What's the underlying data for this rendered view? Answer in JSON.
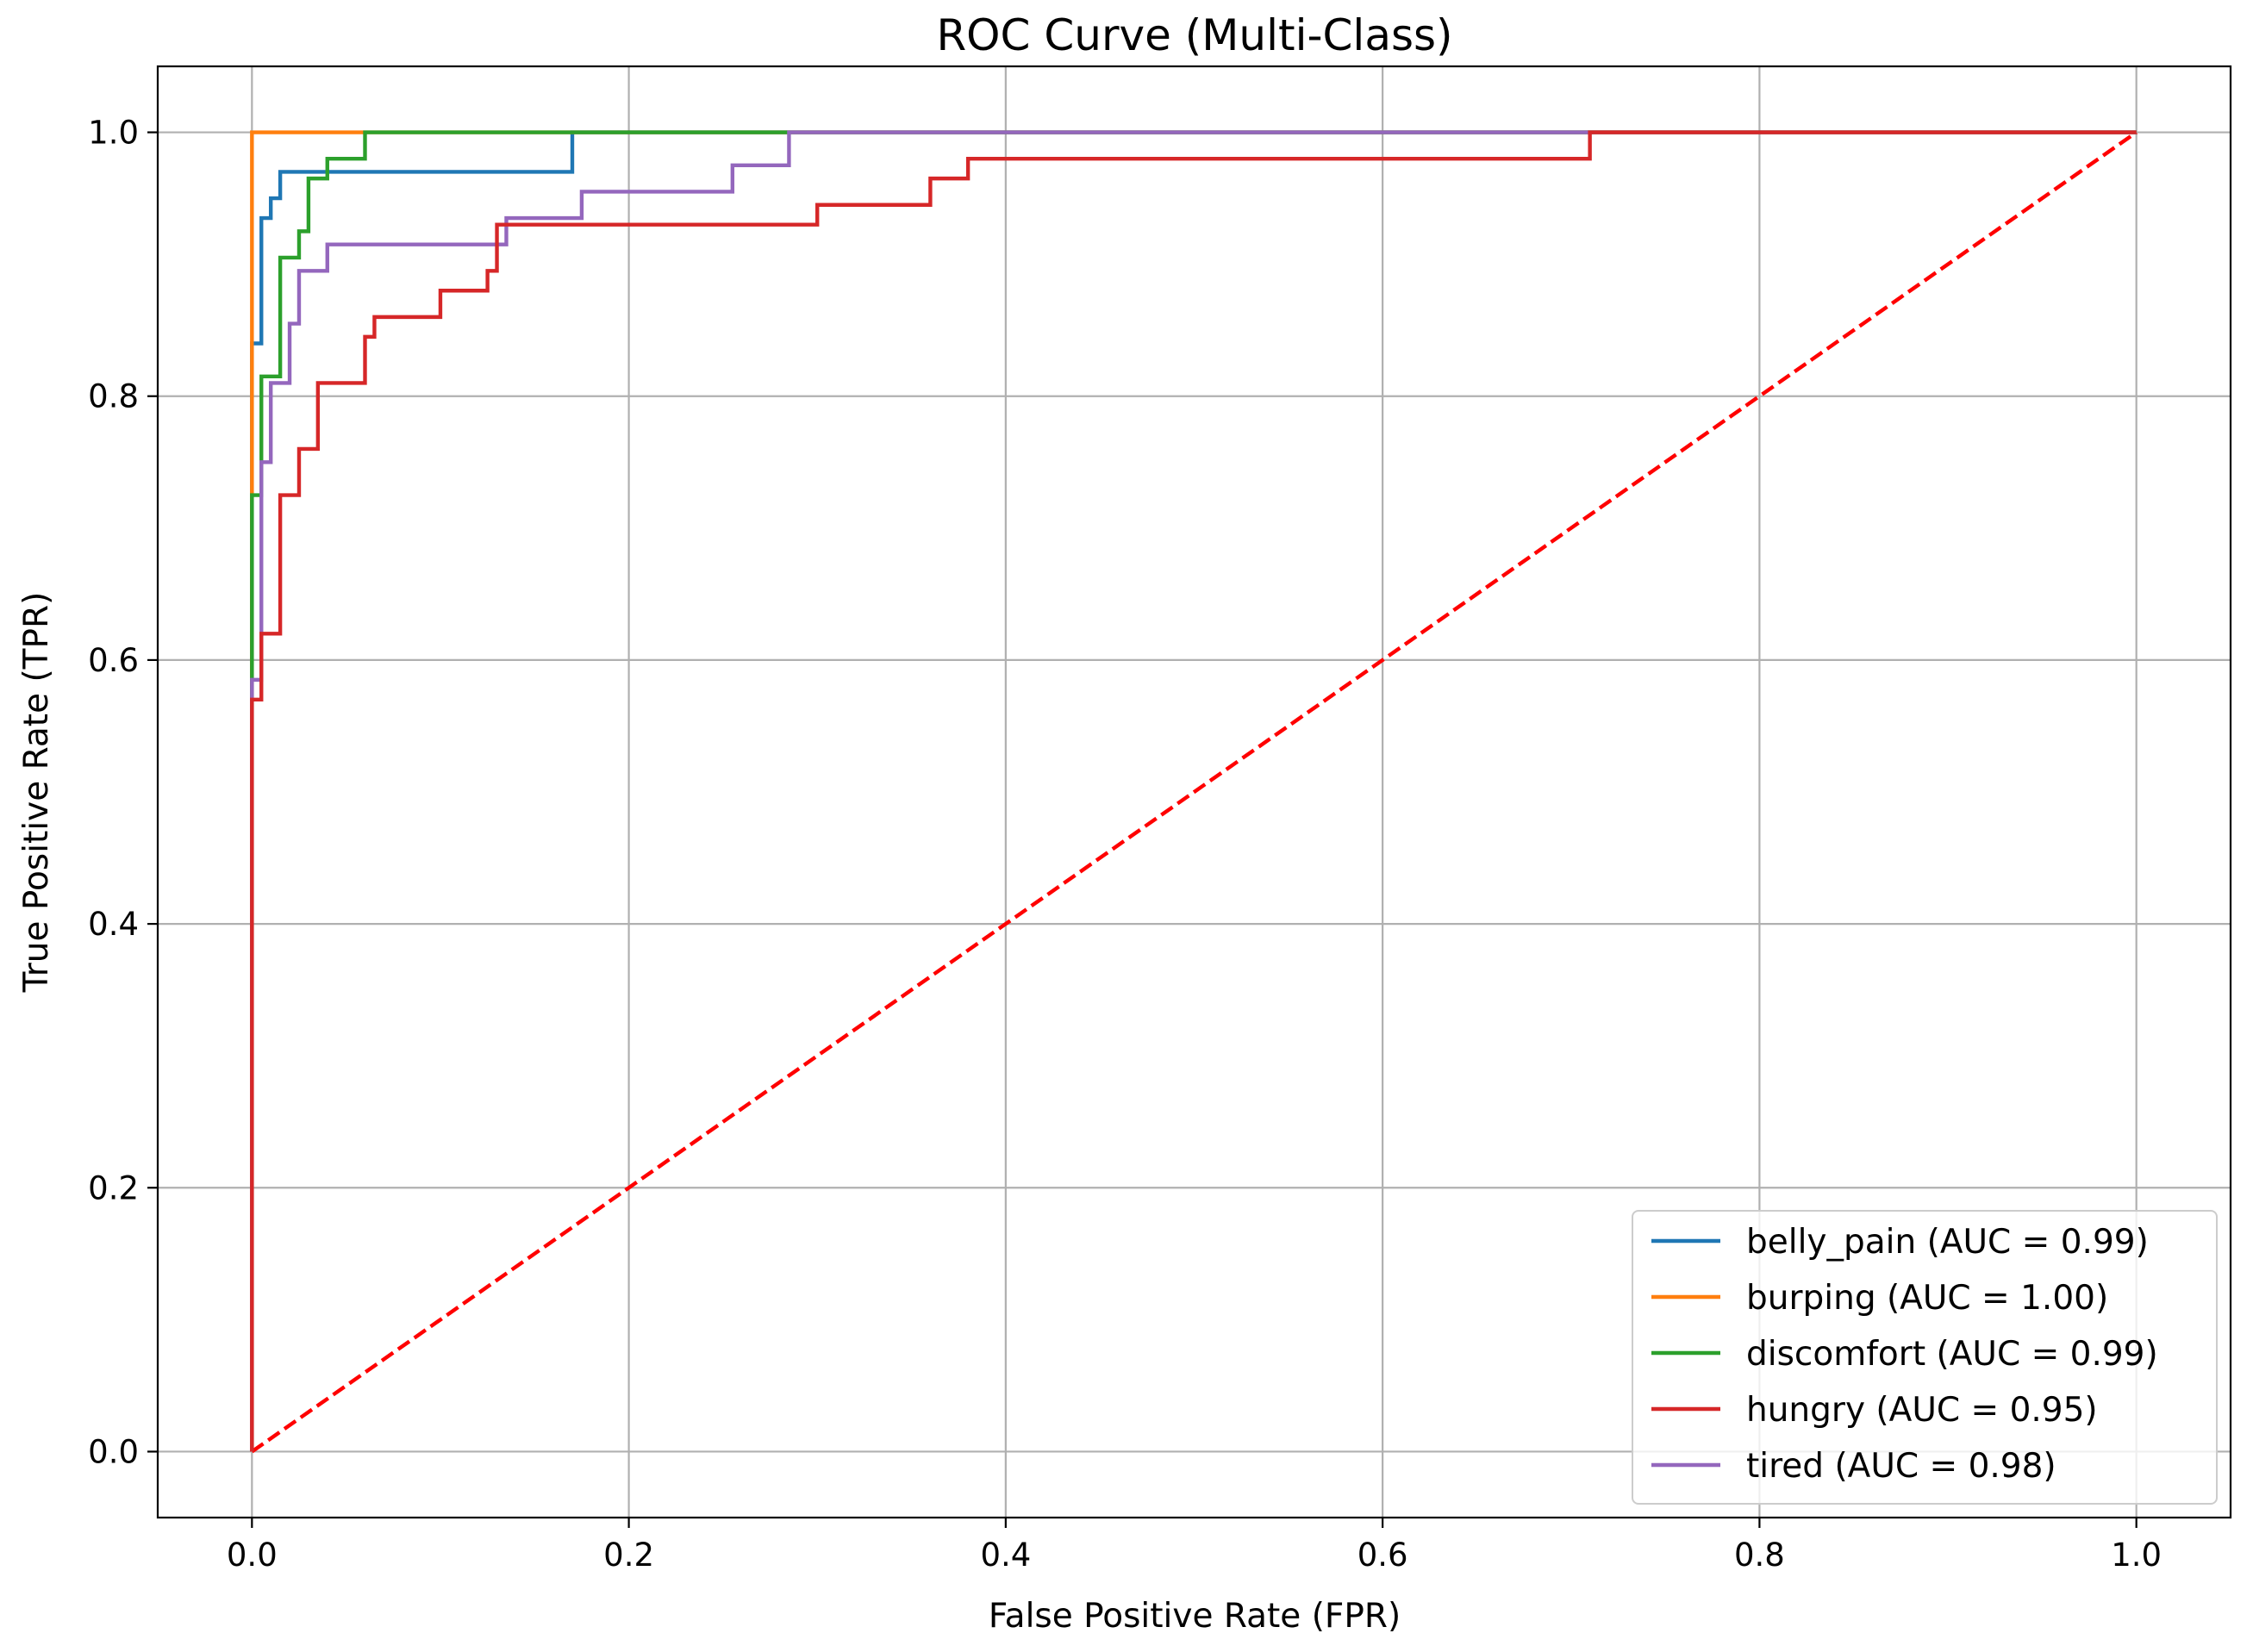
{
  "chart_data": {
    "type": "line",
    "title": "ROC Curve (Multi-Class)",
    "xlabel": "False Positive Rate (FPR)",
    "ylabel": "True Positive Rate (TPR)",
    "xlim": [
      -0.05,
      1.05
    ],
    "ylim": [
      -0.05,
      1.05
    ],
    "xticks": [
      0.0,
      0.2,
      0.4,
      0.6,
      0.8,
      1.0
    ],
    "yticks": [
      0.0,
      0.2,
      0.4,
      0.6,
      0.8,
      1.0
    ],
    "xtick_labels": [
      "0.0",
      "0.2",
      "0.4",
      "0.6",
      "0.8",
      "1.0"
    ],
    "ytick_labels": [
      "0.0",
      "0.2",
      "0.4",
      "0.6",
      "0.8",
      "1.0"
    ],
    "grid": true,
    "legend_position": "bottom-right",
    "series": [
      {
        "name": "belly_pain (AUC = 0.99)",
        "color": "#1f77b4",
        "x": [
          0.0,
          0.0,
          0.005,
          0.005,
          0.01,
          0.01,
          0.015,
          0.015,
          0.17,
          0.17,
          1.0
        ],
        "y": [
          0.0,
          0.84,
          0.84,
          0.935,
          0.935,
          0.95,
          0.95,
          0.97,
          0.97,
          1.0,
          1.0
        ]
      },
      {
        "name": "burping (AUC = 1.00)",
        "color": "#ff7f0e",
        "x": [
          0.0,
          0.0,
          1.0
        ],
        "y": [
          0.0,
          1.0,
          1.0
        ]
      },
      {
        "name": "discomfort (AUC = 0.99)",
        "color": "#2ca02c",
        "x": [
          0.0,
          0.0,
          0.005,
          0.005,
          0.01,
          0.01,
          0.015,
          0.015,
          0.025,
          0.025,
          0.03,
          0.03,
          0.04,
          0.04,
          0.06,
          0.06,
          1.0
        ],
        "y": [
          0.0,
          0.725,
          0.725,
          0.815,
          0.815,
          0.815,
          0.815,
          0.905,
          0.905,
          0.925,
          0.925,
          0.965,
          0.965,
          0.98,
          0.98,
          1.0,
          1.0
        ]
      },
      {
        "name": "hungry (AUC = 0.95)",
        "color": "#d62728",
        "x": [
          0.0,
          0.0,
          0.005,
          0.005,
          0.01,
          0.01,
          0.015,
          0.015,
          0.025,
          0.025,
          0.03,
          0.03,
          0.035,
          0.035,
          0.06,
          0.06,
          0.065,
          0.065,
          0.1,
          0.1,
          0.125,
          0.125,
          0.13,
          0.13,
          0.3,
          0.3,
          0.36,
          0.36,
          0.38,
          0.38,
          0.71,
          0.71,
          1.0
        ],
        "y": [
          0.0,
          0.57,
          0.57,
          0.62,
          0.62,
          0.62,
          0.62,
          0.725,
          0.725,
          0.76,
          0.76,
          0.76,
          0.76,
          0.81,
          0.81,
          0.845,
          0.845,
          0.86,
          0.86,
          0.88,
          0.88,
          0.895,
          0.895,
          0.93,
          0.93,
          0.945,
          0.945,
          0.965,
          0.965,
          0.98,
          0.98,
          1.0,
          1.0
        ]
      },
      {
        "name": "tired (AUC = 0.98)",
        "color": "#9467bd",
        "x": [
          0.0,
          0.0,
          0.005,
          0.005,
          0.01,
          0.01,
          0.015,
          0.015,
          0.02,
          0.02,
          0.025,
          0.025,
          0.03,
          0.03,
          0.04,
          0.04,
          0.135,
          0.135,
          0.175,
          0.175,
          0.255,
          0.255,
          0.285,
          0.285,
          1.0
        ],
        "y": [
          0.0,
          0.585,
          0.585,
          0.75,
          0.75,
          0.81,
          0.81,
          0.81,
          0.81,
          0.855,
          0.855,
          0.895,
          0.895,
          0.895,
          0.895,
          0.915,
          0.915,
          0.935,
          0.935,
          0.955,
          0.955,
          0.975,
          0.975,
          1.0,
          1.0
        ]
      }
    ],
    "diagonal": {
      "color": "#ff0000",
      "x": [
        0.0,
        1.0
      ],
      "y": [
        0.0,
        1.0
      ]
    }
  }
}
